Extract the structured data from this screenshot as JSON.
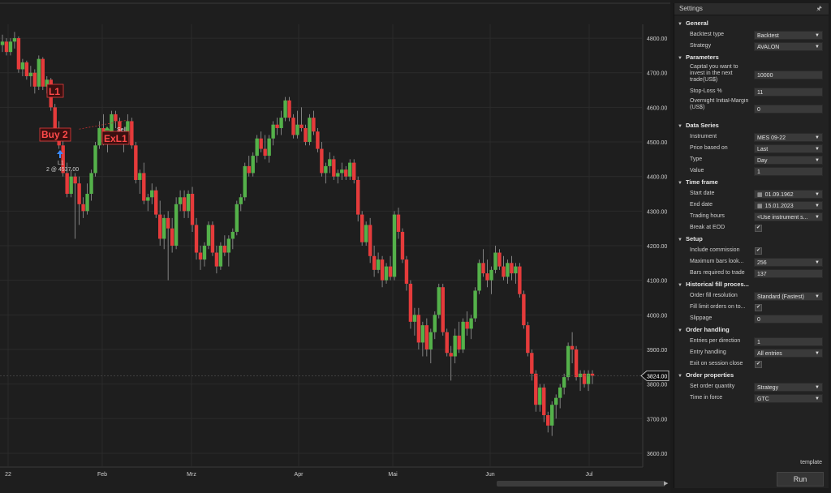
{
  "colors": {
    "up": "#54b14a",
    "down": "#e53b3b",
    "background": "#1e1e1e",
    "grid": "#2b2b2b",
    "text": "#cfcfcf"
  },
  "chart_data": {
    "type": "candlestick",
    "ylim": [
      3560,
      4840
    ],
    "y_ticks": [
      "4800.00",
      "4700.00",
      "4600.00",
      "4500.00",
      "4400.00",
      "4300.00",
      "4200.00",
      "4100.00",
      "4000.00",
      "3900.00",
      "3800.00",
      "3700.00",
      "3600.00"
    ],
    "x_tick_labels": [
      "22",
      "Feb",
      "Mrz",
      "Apr",
      "Mai",
      "Jun",
      "Jul"
    ],
    "last_price_label": "3824.00",
    "annotations": {
      "l1_marker": "L1",
      "buy2_marker": "Buy 2",
      "exl1_marker": "ExL1",
      "sell_label": "Sell",
      "entry_label": "L1",
      "entry_fill": "2 @ 4537.00"
    },
    "candles": [
      {
        "o": 4780,
        "h": 4810,
        "l": 4760,
        "c": 4790
      },
      {
        "o": 4790,
        "h": 4800,
        "l": 4750,
        "c": 4760
      },
      {
        "o": 4760,
        "h": 4800,
        "l": 4750,
        "c": 4790
      },
      {
        "o": 4790,
        "h": 4818,
        "l": 4770,
        "c": 4800
      },
      {
        "o": 4800,
        "h": 4805,
        "l": 4700,
        "c": 4710
      },
      {
        "o": 4710,
        "h": 4740,
        "l": 4690,
        "c": 4730
      },
      {
        "o": 4730,
        "h": 4735,
        "l": 4680,
        "c": 4690
      },
      {
        "o": 4690,
        "h": 4720,
        "l": 4660,
        "c": 4700
      },
      {
        "o": 4700,
        "h": 4710,
        "l": 4640,
        "c": 4660
      },
      {
        "o": 4660,
        "h": 4750,
        "l": 4650,
        "c": 4740
      },
      {
        "o": 4740,
        "h": 4745,
        "l": 4650,
        "c": 4660
      },
      {
        "o": 4660,
        "h": 4690,
        "l": 4640,
        "c": 4680
      },
      {
        "o": 4680,
        "h": 4685,
        "l": 4590,
        "c": 4600
      },
      {
        "o": 4600,
        "h": 4610,
        "l": 4520,
        "c": 4530
      },
      {
        "o": 4530,
        "h": 4560,
        "l": 4480,
        "c": 4490
      },
      {
        "o": 4490,
        "h": 4510,
        "l": 4400,
        "c": 4410
      },
      {
        "o": 4410,
        "h": 4440,
        "l": 4340,
        "c": 4350
      },
      {
        "o": 4350,
        "h": 4420,
        "l": 4340,
        "c": 4400
      },
      {
        "o": 4400,
        "h": 4410,
        "l": 4220,
        "c": 4380
      },
      {
        "o": 4380,
        "h": 4400,
        "l": 4260,
        "c": 4320
      },
      {
        "o": 4320,
        "h": 4340,
        "l": 4280,
        "c": 4300
      },
      {
        "o": 4300,
        "h": 4380,
        "l": 4290,
        "c": 4350
      },
      {
        "o": 4350,
        "h": 4420,
        "l": 4330,
        "c": 4410
      },
      {
        "o": 4410,
        "h": 4500,
        "l": 4400,
        "c": 4490
      },
      {
        "o": 4490,
        "h": 4560,
        "l": 4480,
        "c": 4540
      },
      {
        "o": 4540,
        "h": 4580,
        "l": 4490,
        "c": 4500
      },
      {
        "o": 4500,
        "h": 4530,
        "l": 4470,
        "c": 4520
      },
      {
        "o": 4520,
        "h": 4590,
        "l": 4510,
        "c": 4580
      },
      {
        "o": 4580,
        "h": 4590,
        "l": 4540,
        "c": 4560
      },
      {
        "o": 4560,
        "h": 4570,
        "l": 4500,
        "c": 4510
      },
      {
        "o": 4510,
        "h": 4530,
        "l": 4470,
        "c": 4520
      },
      {
        "o": 4520,
        "h": 4580,
        "l": 4500,
        "c": 4560
      },
      {
        "o": 4560,
        "h": 4570,
        "l": 4480,
        "c": 4490
      },
      {
        "o": 4490,
        "h": 4500,
        "l": 4380,
        "c": 4390
      },
      {
        "o": 4390,
        "h": 4420,
        "l": 4350,
        "c": 4410
      },
      {
        "o": 4410,
        "h": 4440,
        "l": 4320,
        "c": 4330
      },
      {
        "o": 4330,
        "h": 4350,
        "l": 4300,
        "c": 4340
      },
      {
        "o": 4340,
        "h": 4380,
        "l": 4320,
        "c": 4360
      },
      {
        "o": 4360,
        "h": 4370,
        "l": 4280,
        "c": 4290
      },
      {
        "o": 4290,
        "h": 4330,
        "l": 4200,
        "c": 4220
      },
      {
        "o": 4220,
        "h": 4290,
        "l": 4190,
        "c": 4280
      },
      {
        "o": 4280,
        "h": 4300,
        "l": 4100,
        "c": 4250
      },
      {
        "o": 4250,
        "h": 4280,
        "l": 4180,
        "c": 4200
      },
      {
        "o": 4200,
        "h": 4340,
        "l": 4190,
        "c": 4320
      },
      {
        "o": 4320,
        "h": 4360,
        "l": 4300,
        "c": 4340
      },
      {
        "o": 4340,
        "h": 4360,
        "l": 4280,
        "c": 4300
      },
      {
        "o": 4300,
        "h": 4360,
        "l": 4280,
        "c": 4350
      },
      {
        "o": 4350,
        "h": 4370,
        "l": 4240,
        "c": 4260
      },
      {
        "o": 4260,
        "h": 4280,
        "l": 4160,
        "c": 4180
      },
      {
        "o": 4180,
        "h": 4200,
        "l": 4130,
        "c": 4160
      },
      {
        "o": 4160,
        "h": 4210,
        "l": 4140,
        "c": 4200
      },
      {
        "o": 4200,
        "h": 4270,
        "l": 4190,
        "c": 4260
      },
      {
        "o": 4260,
        "h": 4270,
        "l": 4170,
        "c": 4180
      },
      {
        "o": 4180,
        "h": 4200,
        "l": 4120,
        "c": 4140
      },
      {
        "o": 4140,
        "h": 4210,
        "l": 4130,
        "c": 4200
      },
      {
        "o": 4200,
        "h": 4230,
        "l": 4170,
        "c": 4180
      },
      {
        "o": 4180,
        "h": 4230,
        "l": 4140,
        "c": 4220
      },
      {
        "o": 4220,
        "h": 4250,
        "l": 4190,
        "c": 4240
      },
      {
        "o": 4240,
        "h": 4330,
        "l": 4230,
        "c": 4320
      },
      {
        "o": 4320,
        "h": 4350,
        "l": 4300,
        "c": 4340
      },
      {
        "o": 4340,
        "h": 4440,
        "l": 4330,
        "c": 4430
      },
      {
        "o": 4430,
        "h": 4460,
        "l": 4400,
        "c": 4410
      },
      {
        "o": 4410,
        "h": 4470,
        "l": 4400,
        "c": 4460
      },
      {
        "o": 4460,
        "h": 4520,
        "l": 4440,
        "c": 4510
      },
      {
        "o": 4510,
        "h": 4530,
        "l": 4470,
        "c": 4480
      },
      {
        "o": 4480,
        "h": 4520,
        "l": 4450,
        "c": 4460
      },
      {
        "o": 4460,
        "h": 4520,
        "l": 4440,
        "c": 4510
      },
      {
        "o": 4510,
        "h": 4560,
        "l": 4490,
        "c": 4550
      },
      {
        "o": 4550,
        "h": 4570,
        "l": 4520,
        "c": 4540
      },
      {
        "o": 4540,
        "h": 4590,
        "l": 4520,
        "c": 4570
      },
      {
        "o": 4570,
        "h": 4630,
        "l": 4560,
        "c": 4620
      },
      {
        "o": 4620,
        "h": 4630,
        "l": 4560,
        "c": 4570
      },
      {
        "o": 4570,
        "h": 4580,
        "l": 4510,
        "c": 4520
      },
      {
        "o": 4520,
        "h": 4590,
        "l": 4510,
        "c": 4550
      },
      {
        "o": 4550,
        "h": 4600,
        "l": 4530,
        "c": 4540
      },
      {
        "o": 4540,
        "h": 4550,
        "l": 4490,
        "c": 4500
      },
      {
        "o": 4500,
        "h": 4580,
        "l": 4490,
        "c": 4570
      },
      {
        "o": 4570,
        "h": 4590,
        "l": 4520,
        "c": 4530
      },
      {
        "o": 4530,
        "h": 4540,
        "l": 4470,
        "c": 4480
      },
      {
        "o": 4480,
        "h": 4500,
        "l": 4400,
        "c": 4410
      },
      {
        "o": 4410,
        "h": 4440,
        "l": 4380,
        "c": 4430
      },
      {
        "o": 4430,
        "h": 4470,
        "l": 4410,
        "c": 4450
      },
      {
        "o": 4450,
        "h": 4460,
        "l": 4390,
        "c": 4400
      },
      {
        "o": 4400,
        "h": 4420,
        "l": 4380,
        "c": 4410
      },
      {
        "o": 4410,
        "h": 4440,
        "l": 4390,
        "c": 4420
      },
      {
        "o": 4420,
        "h": 4430,
        "l": 4390,
        "c": 4400
      },
      {
        "o": 4400,
        "h": 4450,
        "l": 4390,
        "c": 4440
      },
      {
        "o": 4440,
        "h": 4450,
        "l": 4380,
        "c": 4390
      },
      {
        "o": 4390,
        "h": 4400,
        "l": 4270,
        "c": 4290
      },
      {
        "o": 4290,
        "h": 4300,
        "l": 4200,
        "c": 4210
      },
      {
        "o": 4210,
        "h": 4270,
        "l": 4200,
        "c": 4260
      },
      {
        "o": 4260,
        "h": 4280,
        "l": 4150,
        "c": 4170
      },
      {
        "o": 4170,
        "h": 4200,
        "l": 4110,
        "c": 4130
      },
      {
        "o": 4130,
        "h": 4180,
        "l": 4120,
        "c": 4160
      },
      {
        "o": 4160,
        "h": 4170,
        "l": 4080,
        "c": 4100
      },
      {
        "o": 4100,
        "h": 4150,
        "l": 4090,
        "c": 4140
      },
      {
        "o": 4140,
        "h": 4170,
        "l": 4100,
        "c": 4110
      },
      {
        "o": 4110,
        "h": 4300,
        "l": 4100,
        "c": 4290
      },
      {
        "o": 4290,
        "h": 4310,
        "l": 4220,
        "c": 4240
      },
      {
        "o": 4240,
        "h": 4250,
        "l": 4150,
        "c": 4160
      },
      {
        "o": 4160,
        "h": 4170,
        "l": 4070,
        "c": 4090
      },
      {
        "o": 4090,
        "h": 4100,
        "l": 3960,
        "c": 3980
      },
      {
        "o": 3980,
        "h": 4020,
        "l": 3940,
        "c": 4000
      },
      {
        "o": 4000,
        "h": 4020,
        "l": 3900,
        "c": 3920
      },
      {
        "o": 3920,
        "h": 3980,
        "l": 3880,
        "c": 3970
      },
      {
        "o": 3970,
        "h": 3990,
        "l": 3880,
        "c": 3900
      },
      {
        "o": 3900,
        "h": 3960,
        "l": 3860,
        "c": 3950
      },
      {
        "o": 3950,
        "h": 4010,
        "l": 3930,
        "c": 4000
      },
      {
        "o": 4000,
        "h": 4090,
        "l": 3990,
        "c": 4080
      },
      {
        "o": 4080,
        "h": 4090,
        "l": 3940,
        "c": 3950
      },
      {
        "o": 3950,
        "h": 3960,
        "l": 3880,
        "c": 3890
      },
      {
        "o": 3890,
        "h": 3910,
        "l": 3810,
        "c": 3880
      },
      {
        "o": 3880,
        "h": 3960,
        "l": 3860,
        "c": 3940
      },
      {
        "o": 3940,
        "h": 3980,
        "l": 3890,
        "c": 3900
      },
      {
        "o": 3900,
        "h": 3990,
        "l": 3890,
        "c": 3980
      },
      {
        "o": 3980,
        "h": 4010,
        "l": 3940,
        "c": 3960
      },
      {
        "o": 3960,
        "h": 4000,
        "l": 3930,
        "c": 3990
      },
      {
        "o": 3990,
        "h": 4080,
        "l": 3980,
        "c": 4070
      },
      {
        "o": 4070,
        "h": 4160,
        "l": 4060,
        "c": 4150
      },
      {
        "o": 4150,
        "h": 4190,
        "l": 4110,
        "c": 4120
      },
      {
        "o": 4120,
        "h": 4160,
        "l": 4080,
        "c": 4100
      },
      {
        "o": 4100,
        "h": 4140,
        "l": 4060,
        "c": 4130
      },
      {
        "o": 4130,
        "h": 4200,
        "l": 4120,
        "c": 4180
      },
      {
        "o": 4180,
        "h": 4190,
        "l": 4130,
        "c": 4140
      },
      {
        "o": 4140,
        "h": 4170,
        "l": 4100,
        "c": 4110
      },
      {
        "o": 4110,
        "h": 4160,
        "l": 4090,
        "c": 4150
      },
      {
        "o": 4150,
        "h": 4170,
        "l": 4100,
        "c": 4120
      },
      {
        "o": 4120,
        "h": 4150,
        "l": 4090,
        "c": 4140
      },
      {
        "o": 4140,
        "h": 4150,
        "l": 4050,
        "c": 4060
      },
      {
        "o": 4060,
        "h": 4070,
        "l": 3960,
        "c": 3970
      },
      {
        "o": 3970,
        "h": 3980,
        "l": 3880,
        "c": 3890
      },
      {
        "o": 3890,
        "h": 3900,
        "l": 3810,
        "c": 3830
      },
      {
        "o": 3830,
        "h": 3840,
        "l": 3720,
        "c": 3740
      },
      {
        "o": 3740,
        "h": 3800,
        "l": 3720,
        "c": 3790
      },
      {
        "o": 3790,
        "h": 3800,
        "l": 3690,
        "c": 3710
      },
      {
        "o": 3710,
        "h": 3720,
        "l": 3660,
        "c": 3680
      },
      {
        "o": 3680,
        "h": 3750,
        "l": 3650,
        "c": 3740
      },
      {
        "o": 3740,
        "h": 3770,
        "l": 3700,
        "c": 3760
      },
      {
        "o": 3760,
        "h": 3800,
        "l": 3730,
        "c": 3790
      },
      {
        "o": 3790,
        "h": 3830,
        "l": 3770,
        "c": 3820
      },
      {
        "o": 3820,
        "h": 3920,
        "l": 3810,
        "c": 3910
      },
      {
        "o": 3910,
        "h": 3950,
        "l": 3860,
        "c": 3900
      },
      {
        "o": 3900,
        "h": 3910,
        "l": 3810,
        "c": 3820
      },
      {
        "o": 3820,
        "h": 3840,
        "l": 3780,
        "c": 3830
      },
      {
        "o": 3830,
        "h": 3840,
        "l": 3790,
        "c": 3800
      },
      {
        "o": 3800,
        "h": 3840,
        "l": 3780,
        "c": 3830
      },
      {
        "o": 3830,
        "h": 3840,
        "l": 3800,
        "c": 3824
      }
    ]
  },
  "settings": {
    "title": "Settings",
    "pin_icon": "pin-icon",
    "template_label": "template",
    "run_label": "Run",
    "sections": [
      {
        "title": "General",
        "rows": [
          {
            "label": "Backtest type",
            "kind": "select",
            "value": "Backtest"
          },
          {
            "label": "Strategy",
            "kind": "select",
            "value": "AVALON"
          }
        ]
      },
      {
        "title": "Parameters",
        "rows": [
          {
            "label": "Capital you want to invest in the next trade(US$)",
            "kind": "input",
            "value": "10000",
            "tall": 3
          },
          {
            "label": "Stop-Loss %",
            "kind": "input",
            "value": "11"
          },
          {
            "label": "Overnight Initial-Margin (US$)",
            "kind": "input",
            "value": "0",
            "tall": 3
          }
        ]
      },
      {
        "title": "Data Series",
        "rows": [
          {
            "label": "Instrument",
            "kind": "select",
            "value": "MES 09-22"
          },
          {
            "label": "Price based on",
            "kind": "select",
            "value": "Last"
          },
          {
            "label": "Type",
            "kind": "select",
            "value": "Day"
          },
          {
            "label": "Value",
            "kind": "input",
            "value": "1"
          }
        ]
      },
      {
        "title": "Time frame",
        "rows": [
          {
            "label": "Start date",
            "kind": "date",
            "value": "01.09.1962"
          },
          {
            "label": "End date",
            "kind": "date",
            "value": "15.01.2023"
          },
          {
            "label": "Trading hours",
            "kind": "select",
            "value": "<Use instrument s..."
          },
          {
            "label": "Break at EOD",
            "kind": "check",
            "value": "✔"
          }
        ]
      },
      {
        "title": "Setup",
        "rows": [
          {
            "label": "Include commission",
            "kind": "check",
            "value": "✔"
          },
          {
            "label": "Maximum bars look...",
            "kind": "select",
            "value": "256"
          },
          {
            "label": "Bars required to trade",
            "kind": "input",
            "value": "137"
          }
        ]
      },
      {
        "title": "Historical fill proces...",
        "rows": [
          {
            "label": "Order fill resolution",
            "kind": "select",
            "value": "Standard (Fastest)"
          },
          {
            "label": "Fill limit orders on to...",
            "kind": "check",
            "value": "✔"
          },
          {
            "label": "Slippage",
            "kind": "input",
            "value": "0"
          }
        ]
      },
      {
        "title": "Order handling",
        "rows": [
          {
            "label": "Entries per direction",
            "kind": "input",
            "value": "1"
          },
          {
            "label": "Entry handling",
            "kind": "select",
            "value": "All entries"
          },
          {
            "label": "Exit on session close",
            "kind": "check",
            "value": "✔"
          }
        ]
      },
      {
        "title": "Order properties",
        "rows": [
          {
            "label": "Set order quantity",
            "kind": "select",
            "value": "Strategy"
          },
          {
            "label": "Time in force",
            "kind": "select",
            "value": "GTC"
          }
        ]
      }
    ]
  }
}
